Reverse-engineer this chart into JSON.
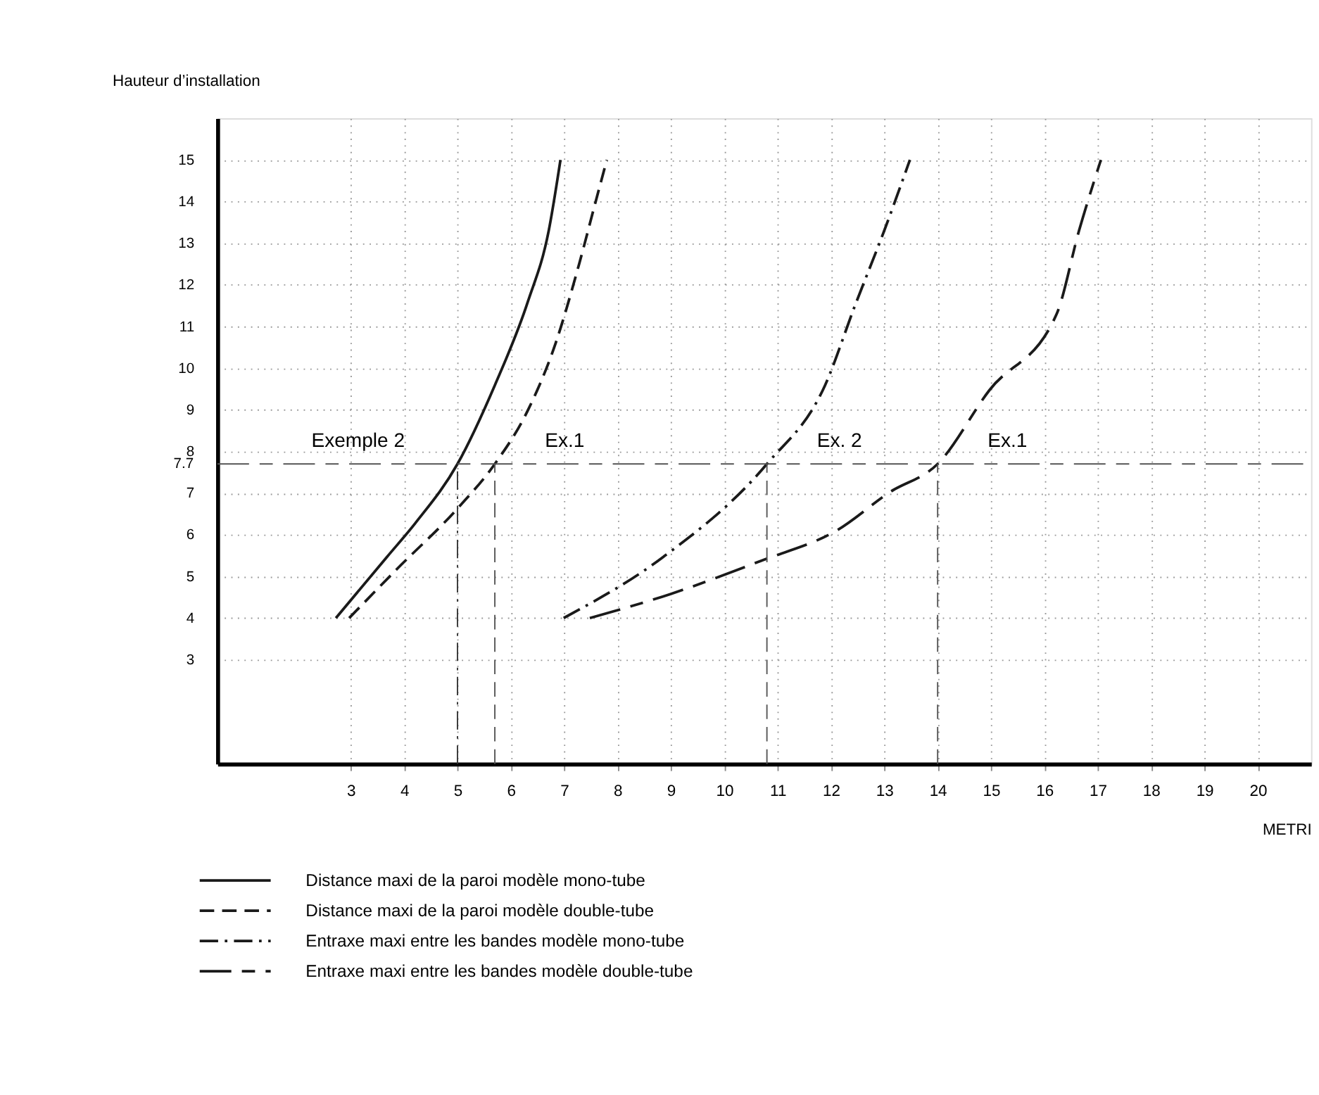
{
  "chart_data": {
    "type": "line",
    "ylabel": "Hauteur d’installation",
    "xlabel": "METRI",
    "xlim": [
      0.5,
      21
    ],
    "xticks": [
      3,
      4,
      5,
      6,
      7,
      8,
      9,
      10,
      11,
      12,
      13,
      14,
      15,
      16,
      17,
      18,
      19,
      20
    ],
    "ylim": [
      0.5,
      16
    ],
    "yticks": [
      3,
      4,
      5,
      6,
      7,
      {
        "value": 7.7,
        "label": "7.7"
      },
      8,
      9,
      10,
      11,
      12,
      13,
      14,
      15
    ],
    "grid": true,
    "legend": "bottom",
    "series": [
      {
        "name": "Distance maxi de la paroi modèle mono-tube",
        "color": "#1a1a1a",
        "line_style": "solid",
        "x": [
          2.72,
          3.68,
          4.21,
          5.0,
          5.7,
          6.32,
          6.71,
          6.93
        ],
        "values": [
          4.0,
          5.47,
          6.28,
          7.7,
          9.59,
          11.6,
          13.3,
          15.0
        ]
      },
      {
        "name": "Distance maxi de la paroi modèle double-tube",
        "color": "#1a1a1a",
        "line_style": "dashed",
        "x": [
          2.97,
          3.86,
          5.0,
          5.7,
          6.32,
          6.84,
          7.28,
          7.59,
          7.8
        ],
        "values": [
          4.0,
          5.17,
          6.63,
          7.7,
          8.99,
          10.6,
          12.5,
          14.0,
          15.0
        ]
      },
      {
        "name": "Entraxe maxi entre les bandes modèle mono-tube",
        "color": "#1a1a1a",
        "line_style": "dashdot",
        "x": [
          6.99,
          8.86,
          10.8,
          11.89,
          12.45,
          13.01,
          13.48
        ],
        "values": [
          4.0,
          5.47,
          7.7,
          9.59,
          11.5,
          13.34,
          15.0
        ]
      },
      {
        "name": "Entraxe maxi entre les bandes modèle double-tube",
        "color": "#1a1a1a",
        "line_style": "longdash",
        "x": [
          7.48,
          9.0,
          10.68,
          12.13,
          13.1,
          14.0,
          14.97,
          16.23,
          16.65,
          17.06
        ],
        "values": [
          4.0,
          4.58,
          5.37,
          6.12,
          7.02,
          7.7,
          9.47,
          11.3,
          13.3,
          15.0
        ]
      }
    ],
    "ref_lines": [
      {
        "axis": "y",
        "value": 7.7,
        "color": "#555555",
        "line_style": "longdash"
      },
      {
        "axis": "x",
        "value": 5,
        "color": "#333333",
        "line_style": "dashdot"
      },
      {
        "axis": "x",
        "value": 5.7,
        "color": "#555555",
        "line_style": "dashed"
      },
      {
        "axis": "x",
        "value": 10.8,
        "color": "#555555",
        "line_style": "dashed"
      },
      {
        "axis": "x",
        "value": 14,
        "color": "#555555",
        "line_style": "dashed"
      }
    ],
    "annotations": [
      {
        "text": "Exemple 2",
        "x": 5,
        "y": 7.7
      },
      {
        "text": "Ex.1",
        "x": 5.7,
        "y": 7.7
      },
      {
        "text": "Ex. 2",
        "x": 10.8,
        "y": 7.7
      },
      {
        "text": "Ex.1",
        "x": 14,
        "y": 7.7
      }
    ]
  }
}
